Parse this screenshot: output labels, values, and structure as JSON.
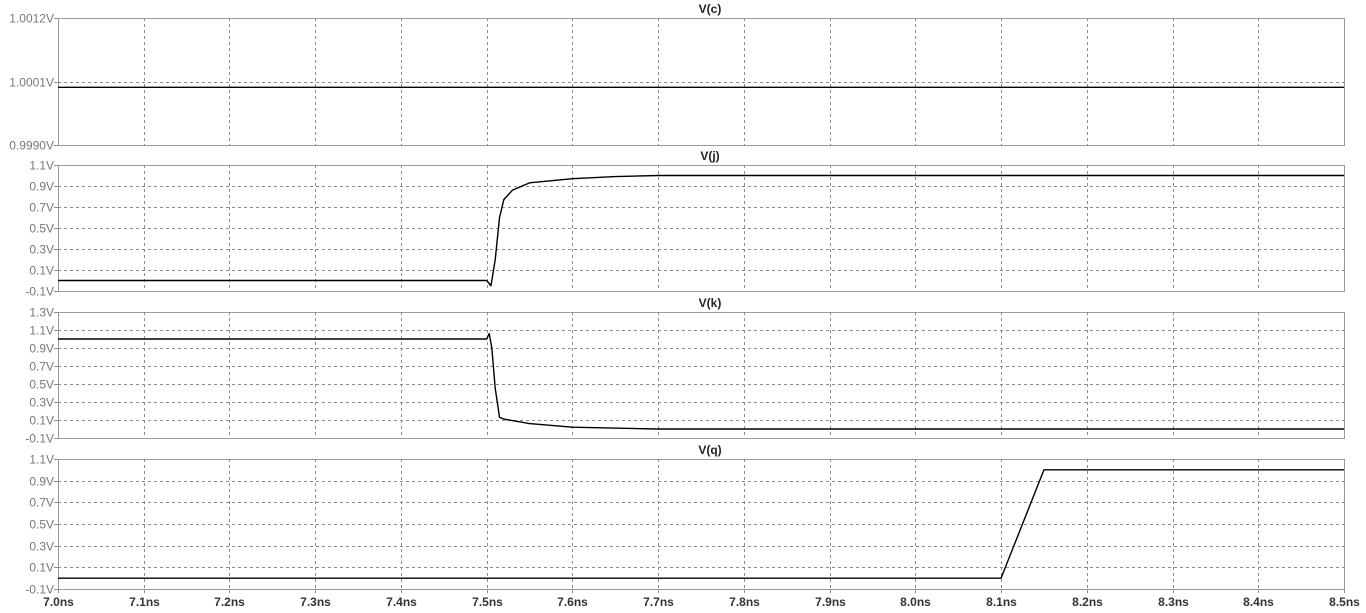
{
  "chart_data": [
    {
      "type": "line",
      "title": "V(c)",
      "x_unit": "ns",
      "xlim": [
        7.0,
        8.5
      ],
      "ylim": [
        0.999,
        1.0012
      ],
      "yticks": [
        "1.0012V",
        "1.0001V",
        "0.9990V"
      ],
      "ytick_values": [
        1.0012,
        1.0001,
        0.999
      ],
      "grid": true,
      "series": [
        {
          "x": [
            7.0,
            8.5
          ],
          "y": [
            1.0,
            1.0
          ]
        }
      ]
    },
    {
      "type": "line",
      "title": "V(j)",
      "x_unit": "ns",
      "xlim": [
        7.0,
        8.5
      ],
      "ylim": [
        -0.1,
        1.1
      ],
      "yticks": [
        "1.1V",
        "0.9V",
        "0.7V",
        "0.5V",
        "0.3V",
        "0.1V",
        "-0.1V"
      ],
      "ytick_values": [
        1.1,
        0.9,
        0.7,
        0.5,
        0.3,
        0.1,
        -0.1
      ],
      "grid": true,
      "series": [
        {
          "x": [
            7.0,
            7.5,
            7.505,
            7.51,
            7.515,
            7.52,
            7.53,
            7.55,
            7.6,
            7.65,
            7.7,
            8.5
          ],
          "y": [
            0.0,
            0.0,
            -0.05,
            0.2,
            0.6,
            0.77,
            0.86,
            0.93,
            0.97,
            0.99,
            1.0,
            1.0
          ]
        }
      ]
    },
    {
      "type": "line",
      "title": "V(k)",
      "x_unit": "ns",
      "xlim": [
        7.0,
        8.5
      ],
      "ylim": [
        -0.1,
        1.3
      ],
      "yticks": [
        "1.3V",
        "1.1V",
        "0.9V",
        "0.7V",
        "0.5V",
        "0.3V",
        "0.1V",
        "-0.1V"
      ],
      "ytick_values": [
        1.3,
        1.1,
        0.9,
        0.7,
        0.5,
        0.3,
        0.1,
        -0.1
      ],
      "grid": true,
      "series": [
        {
          "x": [
            7.0,
            7.5,
            7.503,
            7.506,
            7.51,
            7.515,
            7.52,
            7.55,
            7.6,
            7.7,
            8.5
          ],
          "y": [
            1.0,
            1.0,
            1.06,
            0.9,
            0.45,
            0.13,
            0.11,
            0.06,
            0.02,
            0.0,
            0.0
          ]
        }
      ]
    },
    {
      "type": "line",
      "title": "V(q)",
      "x_unit": "ns",
      "xlim": [
        7.0,
        8.5
      ],
      "ylim": [
        -0.1,
        1.1
      ],
      "yticks": [
        "1.1V",
        "0.9V",
        "0.7V",
        "0.5V",
        "0.3V",
        "0.1V",
        "-0.1V"
      ],
      "ytick_values": [
        1.1,
        0.9,
        0.7,
        0.5,
        0.3,
        0.1,
        -0.1
      ],
      "grid": true,
      "series": [
        {
          "x": [
            7.0,
            8.1,
            8.15,
            8.5
          ],
          "y": [
            0.0,
            0.0,
            1.0,
            1.0
          ]
        }
      ]
    }
  ],
  "x_axis": {
    "ticks": [
      "7.0ns",
      "7.1ns",
      "7.2ns",
      "7.3ns",
      "7.4ns",
      "7.5ns",
      "7.6ns",
      "7.7ns",
      "7.8ns",
      "7.9ns",
      "8.0ns",
      "8.1ns",
      "8.2ns",
      "8.3ns",
      "8.4ns",
      "8.5ns"
    ],
    "tick_values": [
      7.0,
      7.1,
      7.2,
      7.3,
      7.4,
      7.5,
      7.6,
      7.7,
      7.8,
      7.9,
      8.0,
      8.1,
      8.2,
      8.3,
      8.4,
      8.5
    ]
  }
}
